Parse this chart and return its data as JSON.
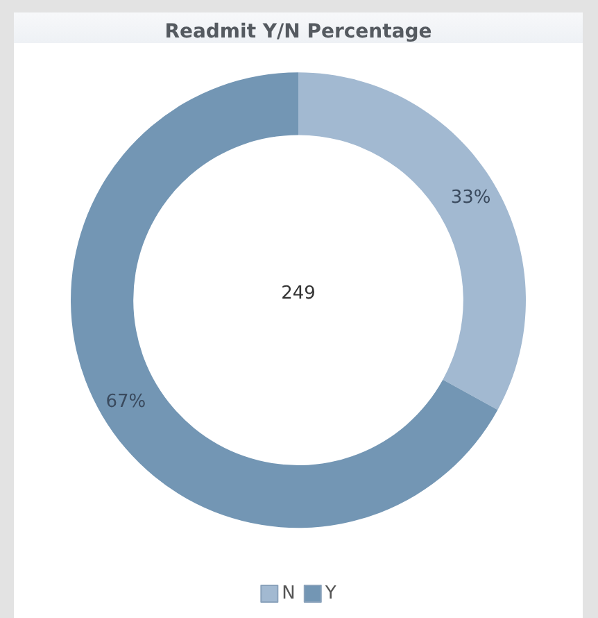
{
  "chart_data": {
    "type": "donut",
    "title": "Readmit Y/N Percentage",
    "categories": [
      "N",
      "Y"
    ],
    "values": [
      33,
      67
    ],
    "colors": [
      "#a2b9d1",
      "#7396b4"
    ],
    "value_labels": [
      "33%",
      "67%"
    ],
    "annotations": [
      "249"
    ],
    "legend": "bottom"
  }
}
